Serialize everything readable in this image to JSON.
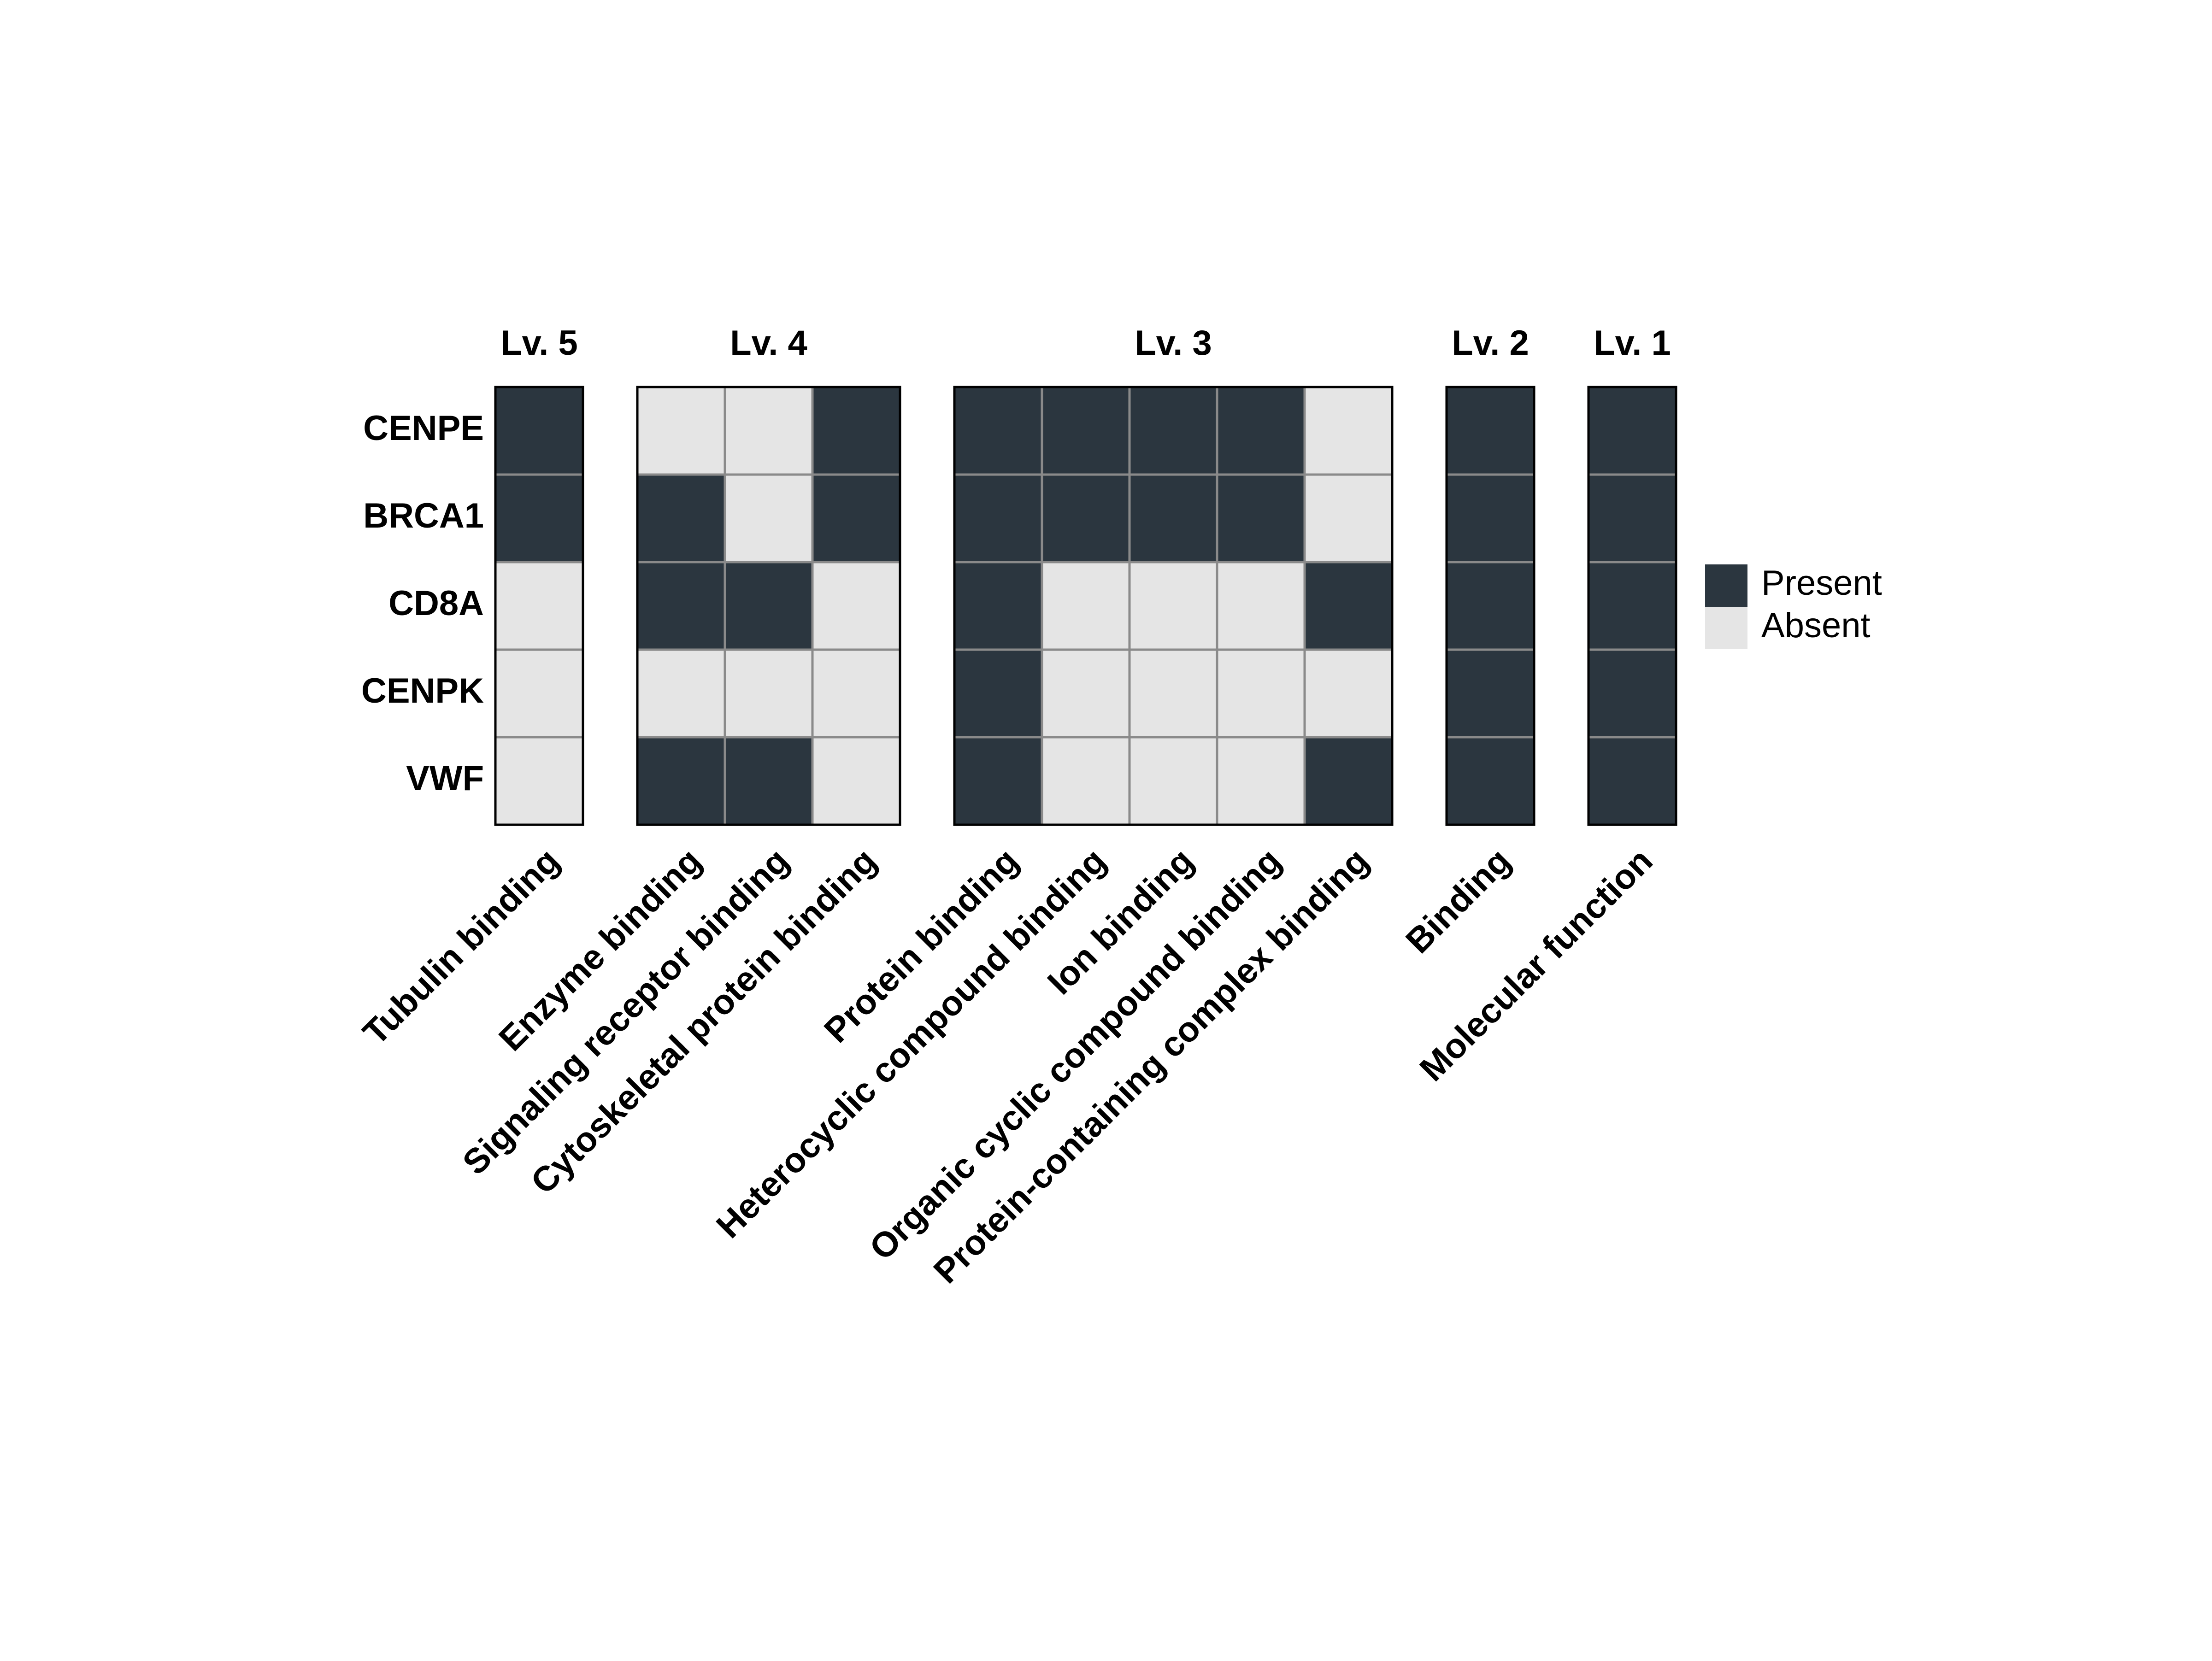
{
  "chart_data": {
    "type": "heatmap",
    "genes": [
      "CENPE",
      "BRCA1",
      "CD8A",
      "CENPK",
      "VWF"
    ],
    "panels": [
      {
        "title": "Lv. 5",
        "terms": [
          "Tubulin binding"
        ],
        "matrix": [
          [
            1
          ],
          [
            1
          ],
          [
            0
          ],
          [
            0
          ],
          [
            0
          ]
        ]
      },
      {
        "title": "Lv. 4",
        "terms": [
          "Enzyme binding",
          "Signaling receptor binding",
          "Cytoskeletal protein binding"
        ],
        "matrix": [
          [
            0,
            0,
            1
          ],
          [
            1,
            0,
            1
          ],
          [
            1,
            1,
            0
          ],
          [
            0,
            0,
            0
          ],
          [
            1,
            1,
            0
          ]
        ]
      },
      {
        "title": "Lv. 3",
        "terms": [
          "Protein binding",
          "Heterocyclic compound binding",
          "Ion binding",
          "Organic cyclic compound binding",
          "Protein-containing complex binding"
        ],
        "matrix": [
          [
            1,
            1,
            1,
            1,
            0
          ],
          [
            1,
            1,
            1,
            1,
            0
          ],
          [
            1,
            0,
            0,
            0,
            1
          ],
          [
            1,
            0,
            0,
            0,
            0
          ],
          [
            1,
            0,
            0,
            0,
            1
          ]
        ]
      },
      {
        "title": "Lv. 2",
        "terms": [
          "Binding"
        ],
        "matrix": [
          [
            1
          ],
          [
            1
          ],
          [
            1
          ],
          [
            1
          ],
          [
            1
          ]
        ]
      },
      {
        "title": "Lv. 1",
        "terms": [
          "Molecular function"
        ],
        "matrix": [
          [
            1
          ],
          [
            1
          ],
          [
            1
          ],
          [
            1
          ],
          [
            1
          ]
        ]
      }
    ],
    "legend": {
      "position": "right",
      "entries": [
        {
          "label": "Present",
          "value": 1,
          "color": "#2b363f"
        },
        {
          "label": "Absent",
          "value": 0,
          "color": "#e5e5e5"
        }
      ]
    },
    "colors": {
      "present": "#2b363f",
      "absent": "#e5e5e5",
      "cell_border": "#8a8a8a",
      "panel_border": "#000000"
    }
  }
}
